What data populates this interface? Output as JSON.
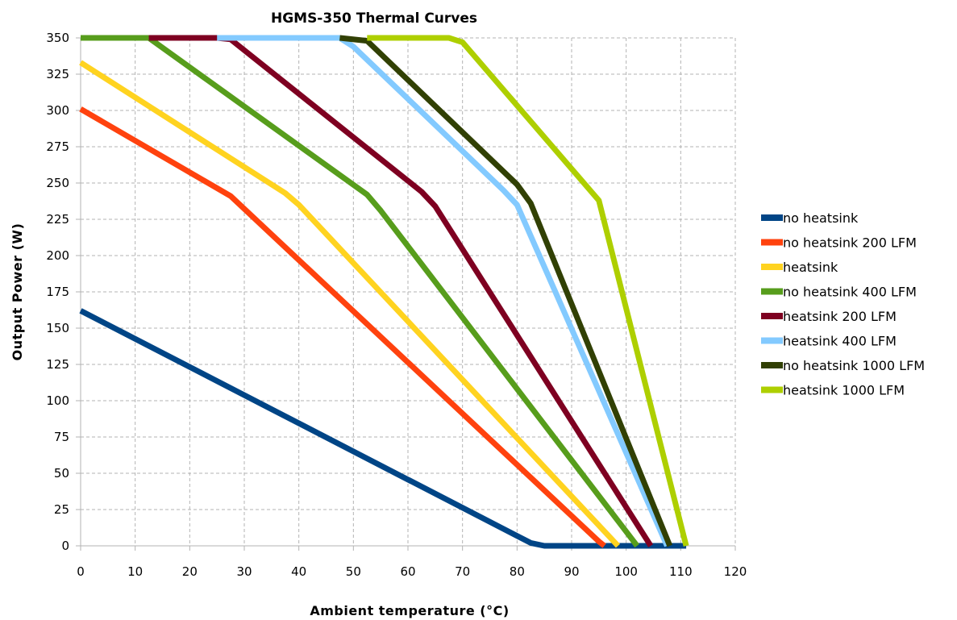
{
  "chart_data": {
    "type": "line",
    "title": "HGMS-350 Thermal Curves",
    "xlabel": "Ambient temperature (°C)",
    "ylabel": "Output Power (W)",
    "xlim": [
      0,
      120
    ],
    "ylim": [
      0,
      350
    ],
    "xticks": [
      0,
      10,
      20,
      30,
      40,
      50,
      60,
      70,
      80,
      90,
      100,
      110,
      120
    ],
    "yticks": [
      0,
      25,
      50,
      75,
      100,
      125,
      150,
      175,
      200,
      225,
      250,
      275,
      300,
      325,
      350
    ],
    "grid": true,
    "legend_position": "right",
    "series": [
      {
        "name": "no heatsink",
        "color": "#004586",
        "points": [
          [
            0,
            162
          ],
          [
            82.5,
            2
          ],
          [
            85,
            0
          ],
          [
            111,
            0
          ]
        ]
      },
      {
        "name": "no heatsink 200 LFM",
        "color": "#ff420e",
        "points": [
          [
            0,
            301
          ],
          [
            27.5,
            241
          ],
          [
            95,
            3
          ],
          [
            96,
            0
          ]
        ]
      },
      {
        "name": "heatsink",
        "color": "#ffd320",
        "points": [
          [
            0,
            333
          ],
          [
            37.5,
            243
          ],
          [
            40,
            235
          ],
          [
            98.5,
            0
          ]
        ]
      },
      {
        "name": "no heatsink 400 LFM",
        "color": "#579d1c",
        "points": [
          [
            0,
            350
          ],
          [
            12.5,
            350
          ],
          [
            52.5,
            242
          ],
          [
            55,
            231
          ],
          [
            102,
            0
          ]
        ]
      },
      {
        "name": "heatsink 200 LFM",
        "color": "#7e0021",
        "points": [
          [
            12.5,
            350
          ],
          [
            25,
            350
          ],
          [
            27.5,
            349
          ],
          [
            62.5,
            244
          ],
          [
            65,
            234
          ],
          [
            104.5,
            0
          ]
        ]
      },
      {
        "name": "heatsink 400 LFM",
        "color": "#83caff",
        "points": [
          [
            25,
            350
          ],
          [
            47.5,
            350
          ],
          [
            50,
            344
          ],
          [
            77.5,
            245
          ],
          [
            80,
            235
          ],
          [
            107.5,
            0
          ]
        ]
      },
      {
        "name": "no heatsink 1000 LFM",
        "color": "#314004",
        "points": [
          [
            47.5,
            350
          ],
          [
            52.5,
            348
          ],
          [
            80,
            249
          ],
          [
            82.5,
            236
          ],
          [
            108,
            0
          ]
        ]
      },
      {
        "name": "heatsink 1000 LFM",
        "color": "#aecf00",
        "points": [
          [
            52.5,
            350
          ],
          [
            67.5,
            350
          ],
          [
            70,
            347
          ],
          [
            95,
            238
          ],
          [
            111,
            0
          ]
        ]
      }
    ]
  }
}
